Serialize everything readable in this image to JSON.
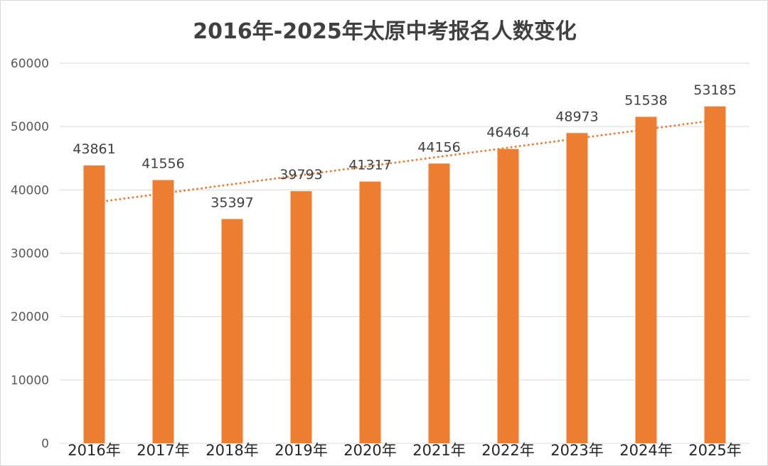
{
  "chart_data": {
    "type": "bar",
    "title": "2016年-2025年太原中考报名人数变化",
    "categories": [
      "2016年",
      "2017年",
      "2018年",
      "2019年",
      "2020年",
      "2021年",
      "2022年",
      "2023年",
      "2024年",
      "2025年"
    ],
    "series": [
      {
        "values": [
          43861,
          41556,
          35397,
          39793,
          41317,
          44156,
          46464,
          48973,
          51538,
          53185
        ],
        "color": "#ED7D31",
        "data_labels": true
      }
    ],
    "trendline": {
      "type": "linear",
      "style": "dotted",
      "color": "#ED7D31",
      "from": 38000,
      "to": 51000
    },
    "yticks": [
      0,
      10000,
      20000,
      30000,
      40000,
      50000,
      60000
    ],
    "ylim": [
      0,
      60000
    ],
    "xlabel": "",
    "ylabel": "",
    "grid": true,
    "legend": "none"
  }
}
